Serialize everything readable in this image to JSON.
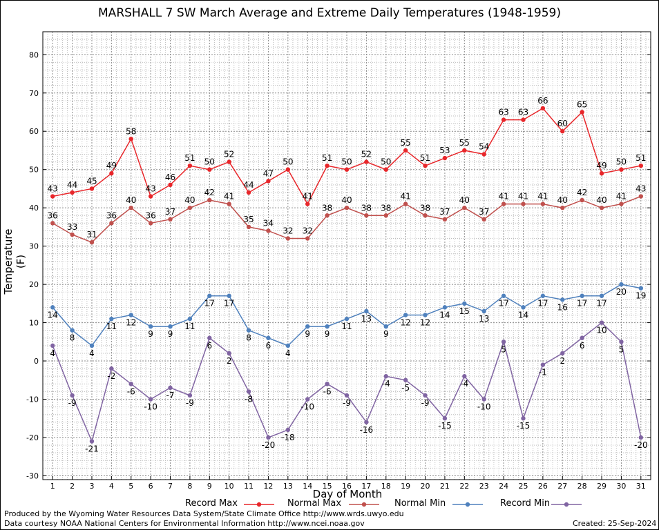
{
  "chart_data": {
    "type": "line",
    "title": "MARSHALL 7 SW March Average and Extreme Daily Temperatures (1948-1959)",
    "xlabel": "Day of Month",
    "ylabel": "Temperature (F)",
    "x": [
      1,
      2,
      3,
      4,
      5,
      6,
      7,
      8,
      9,
      10,
      11,
      12,
      13,
      14,
      15,
      16,
      17,
      18,
      19,
      20,
      21,
      22,
      23,
      24,
      25,
      26,
      27,
      28,
      29,
      30,
      31
    ],
    "xlim": [
      0.5,
      31.5
    ],
    "ylim": [
      -31,
      86
    ],
    "yticks": [
      -30,
      -20,
      -10,
      0,
      10,
      20,
      30,
      40,
      50,
      60,
      70,
      80
    ],
    "grid": true,
    "series": [
      {
        "name": "Record Max",
        "color": "#e8262a",
        "values": [
          43,
          44,
          45,
          49,
          58,
          43,
          46,
          51,
          50,
          52,
          44,
          47,
          50,
          41,
          51,
          50,
          52,
          50,
          55,
          51,
          53,
          55,
          54,
          63,
          63,
          66,
          60,
          65,
          49,
          50,
          51
        ]
      },
      {
        "name": "Normal Max",
        "color": "#c0504d",
        "values": [
          36,
          33,
          31,
          36,
          40,
          36,
          37,
          40,
          42,
          41,
          35,
          34,
          32,
          32,
          38,
          40,
          38,
          38,
          41,
          38,
          37,
          40,
          37,
          41,
          41,
          41,
          40,
          42,
          40,
          41,
          43
        ]
      },
      {
        "name": "Normal Min",
        "color": "#4f81bd",
        "values": [
          14,
          8,
          4,
          11,
          12,
          9,
          9,
          11,
          17,
          17,
          8,
          6,
          4,
          9,
          9,
          11,
          13,
          9,
          12,
          12,
          14,
          15,
          13,
          17,
          14,
          17,
          16,
          17,
          17,
          20,
          19
        ]
      },
      {
        "name": "Record Min",
        "color": "#8064a2",
        "values": [
          4,
          -9,
          -21,
          -2,
          -6,
          -10,
          -7,
          -9,
          6,
          2,
          -8,
          -20,
          -18,
          -10,
          -6,
          -9,
          -16,
          -4,
          -5,
          -9,
          -15,
          -4,
          -10,
          5,
          -15,
          -1,
          2,
          6,
          10,
          5,
          -20
        ]
      }
    ],
    "legend_position": "bottom"
  },
  "footer": {
    "produced_by": "Produced by the Wyoming Water Resources Data System/State Climate Office http://www.wrds.uwyo.edu",
    "courtesy": "Data courtesy NOAA National Centers for Environmental Information http://www.ncei.noaa.gov",
    "created": "Created:  25-Sep-2024"
  }
}
